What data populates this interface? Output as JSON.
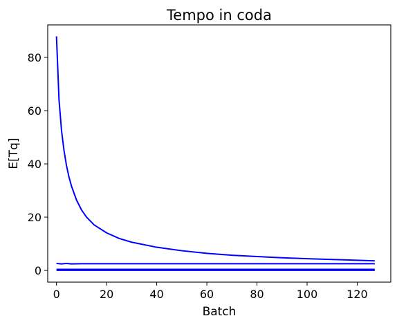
{
  "chart_data": {
    "type": "line",
    "title": "Tempo in coda",
    "xlabel": "Batch",
    "ylabel": "E[Tq]",
    "xlim": [
      -3.5,
      133.4
    ],
    "ylim": [
      -4.4,
      92.2
    ],
    "x_ticks": [
      0,
      20,
      40,
      60,
      80,
      100,
      120
    ],
    "x_tick_labels": [
      "0",
      "20",
      "40",
      "60",
      "80",
      "100",
      "120"
    ],
    "y_ticks": [
      0,
      20,
      40,
      60,
      80
    ],
    "y_tick_labels": [
      "0",
      "20",
      "40",
      "60",
      "80"
    ],
    "grid": false,
    "legend": null,
    "line_color": "#0000ff",
    "series": [
      {
        "x": [
          0,
          1,
          2,
          3,
          4,
          5,
          6,
          8,
          10,
          12,
          15,
          20,
          25,
          30,
          40,
          50,
          60,
          70,
          80,
          90,
          100,
          110,
          120,
          127
        ],
        "values": [
          87.9,
          64.2,
          52.6,
          45.0,
          39.3,
          35.0,
          31.6,
          26.4,
          22.7,
          20.0,
          17.1,
          14.1,
          12.0,
          10.6,
          8.7,
          7.4,
          6.4,
          5.7,
          5.2,
          4.75,
          4.4,
          4.1,
          3.8,
          3.6
        ]
      },
      {
        "x": [
          0,
          2,
          4,
          6,
          10,
          20,
          40,
          60,
          80,
          100,
          127
        ],
        "values": [
          2.6,
          2.45,
          2.6,
          2.45,
          2.5,
          2.5,
          2.5,
          2.5,
          2.5,
          2.5,
          2.5
        ]
      },
      {
        "x": [
          0,
          127
        ],
        "values": [
          0.4,
          0.4
        ]
      },
      {
        "x": [
          0,
          127
        ],
        "values": [
          0.05,
          0.05
        ]
      }
    ]
  }
}
